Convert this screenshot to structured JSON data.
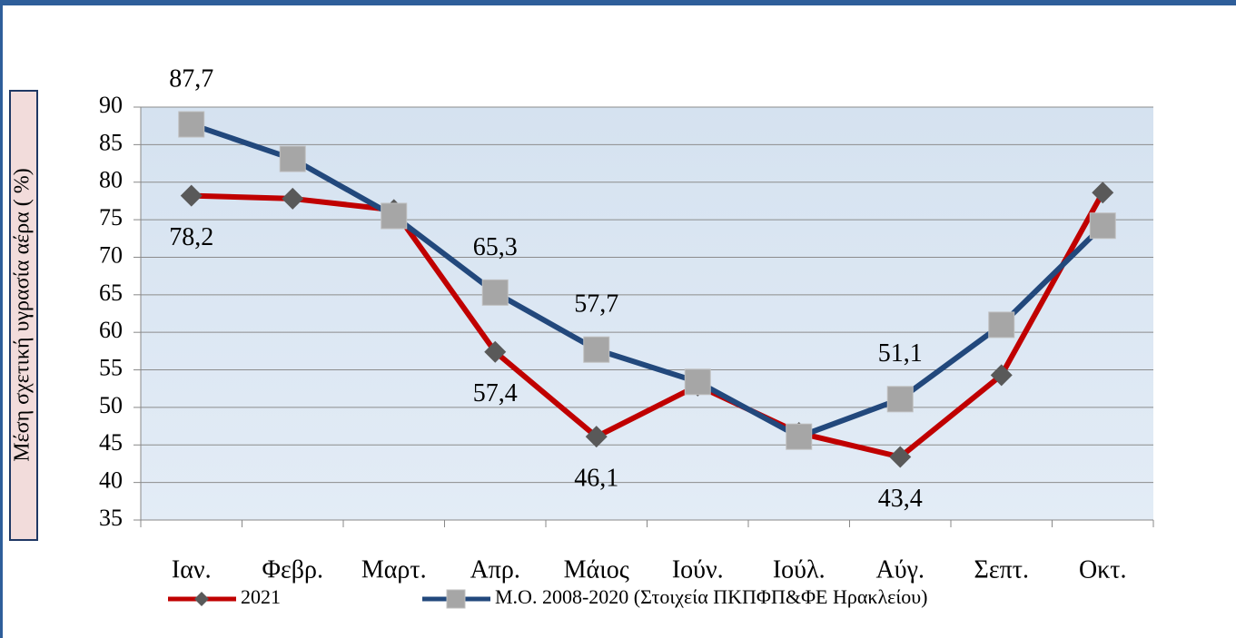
{
  "chart_data": {
    "type": "line",
    "y_axis_label": "Μέση σχετική υγρασία αέρα ( %)",
    "categories": [
      "Ιαν.",
      "Φεβρ.",
      "Μαρτ.",
      "Απρ.",
      "Μάιος",
      "Ιούν.",
      "Ιούλ.",
      "Αύγ.",
      "Σεπτ.",
      "Οκτ."
    ],
    "series": [
      {
        "name": "2021",
        "color": "#c00000",
        "marker_color": "#595959",
        "marker": "diamond",
        "values": [
          78.2,
          77.8,
          76.3,
          57.4,
          46.1,
          52.9,
          46.6,
          43.4,
          54.3,
          78.6
        ],
        "value_labels": [
          "78,2",
          null,
          null,
          "57,4",
          "46,1",
          null,
          null,
          "43,4",
          null,
          null
        ]
      },
      {
        "name": "Μ.Ο. 2008-2020 (Στοιχεία ΠΚΠΦΠ&ΦΕ Ηρακλείου)",
        "color": "#22487c",
        "marker_color": "#a6a6a6",
        "marker": "square",
        "values": [
          87.7,
          83.1,
          75.5,
          65.3,
          57.7,
          53.4,
          46.1,
          51.1,
          61.0,
          74.2
        ],
        "value_labels": [
          "87,7",
          null,
          null,
          "65,3",
          "57,7",
          null,
          null,
          "51,1",
          null,
          null
        ]
      }
    ],
    "ylim": [
      35,
      90
    ],
    "yticks": [
      35,
      40,
      45,
      50,
      55,
      60,
      65,
      70,
      75,
      80,
      85,
      90
    ],
    "grid": true
  }
}
